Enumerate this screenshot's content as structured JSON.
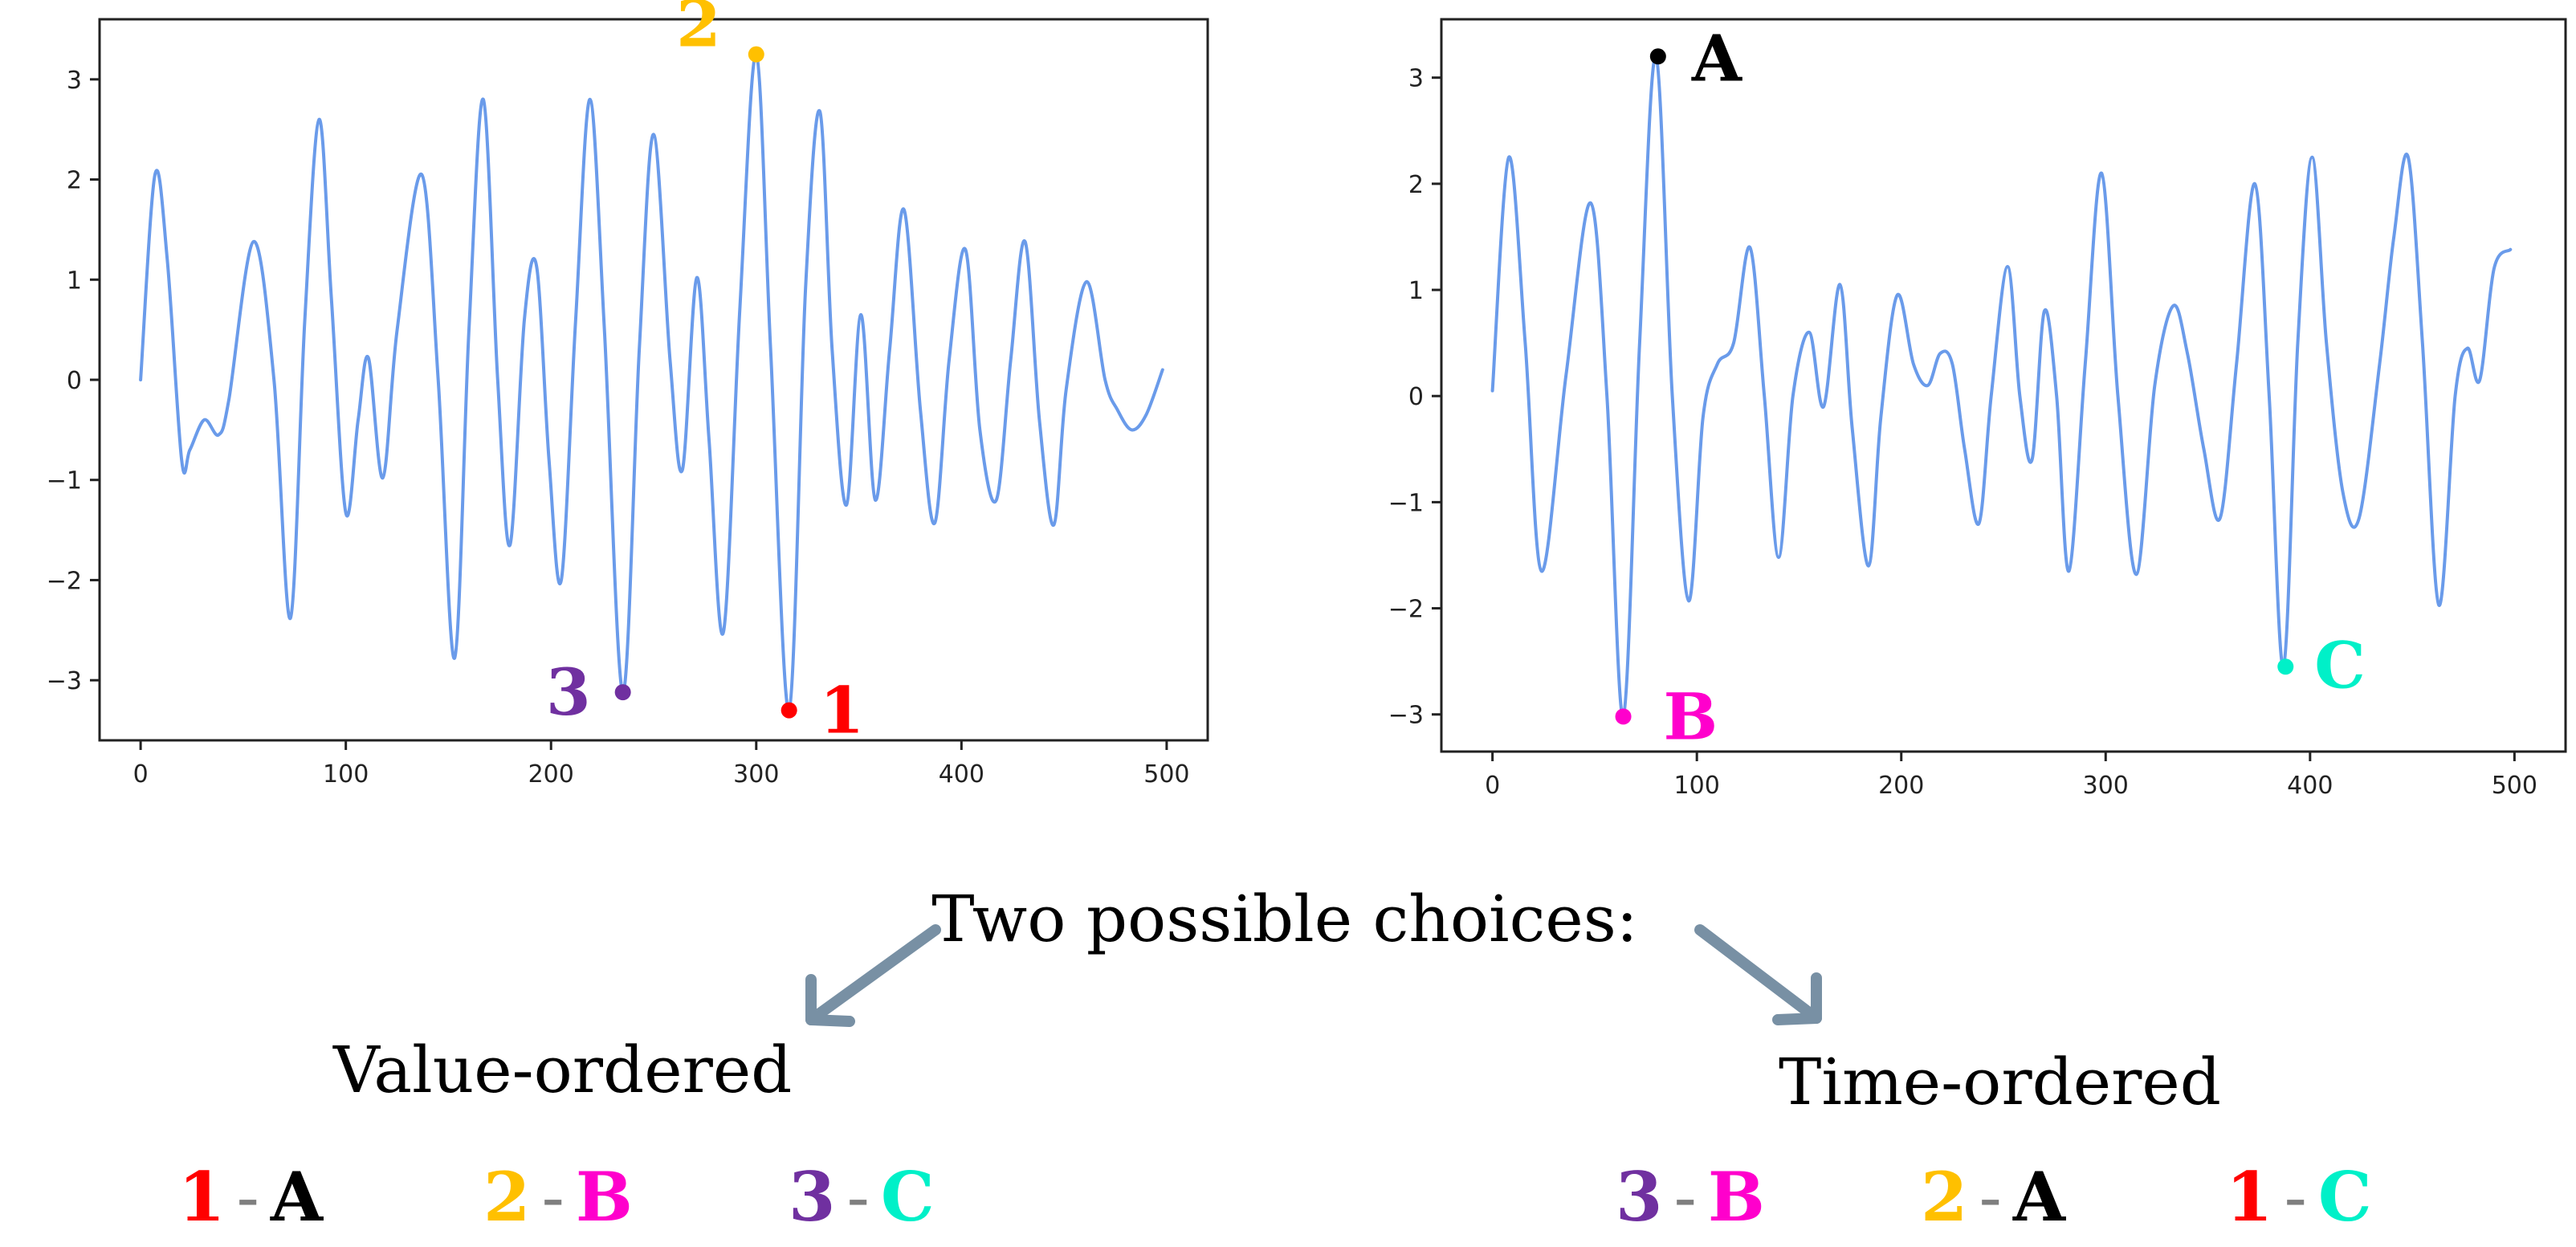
{
  "chart_data": [
    {
      "type": "line",
      "title": "",
      "xlabel": "",
      "ylabel": "",
      "xlim": [
        -20,
        520
      ],
      "ylim": [
        -3.6,
        3.6
      ],
      "xticks": [
        0,
        100,
        200,
        300,
        400,
        500
      ],
      "yticks": [
        -3,
        -2,
        -1,
        0,
        1,
        2,
        3
      ],
      "line_color": "#6a9bea",
      "series": [
        {
          "name": "signal-1",
          "x": [
            0,
            7,
            13,
            20,
            24,
            31,
            38,
            43,
            55,
            65,
            73,
            80,
            87,
            93,
            100,
            106,
            111,
            118,
            125,
            137,
            145,
            153,
            160,
            167,
            174,
            180,
            187,
            193,
            199,
            205,
            212,
            219,
            226,
            235,
            243,
            250,
            258,
            264,
            271,
            277,
            284,
            292,
            300,
            307,
            316,
            324,
            331,
            337,
            344,
            351,
            358,
            365,
            372,
            380,
            387,
            394,
            402,
            409,
            417,
            424,
            431,
            438,
            445,
            451,
            461,
            470,
            476,
            483,
            490,
            498
          ],
          "y": [
            0,
            2.05,
            1.2,
            -0.8,
            -0.7,
            -0.4,
            -0.55,
            -0.2,
            1.38,
            0,
            -2.38,
            0.6,
            2.6,
            0.8,
            -1.33,
            -0.4,
            0.22,
            -0.98,
            0.5,
            2.05,
            0,
            -2.78,
            0.5,
            2.8,
            0,
            -1.65,
            0.6,
            1.13,
            -0.8,
            -2.0,
            0.6,
            2.8,
            0.5,
            -3.12,
            0.3,
            2.45,
            0.2,
            -0.9,
            1.02,
            -0.6,
            -2.52,
            0.7,
            3.25,
            0.3,
            -3.3,
            0.9,
            2.68,
            0.3,
            -1.25,
            0.65,
            -1.2,
            0.3,
            1.7,
            -0.3,
            -1.43,
            0.2,
            1.3,
            -0.5,
            -1.2,
            0.2,
            1.38,
            -0.4,
            -1.45,
            -0.1,
            0.98,
            0,
            -0.3,
            -0.5,
            -0.35,
            0.1
          ]
        }
      ],
      "annotations": [
        {
          "label": "2",
          "x": 300,
          "y": 3.25,
          "color": "#ffc000"
        },
        {
          "label": "3",
          "x": 235,
          "y": -3.12,
          "color": "#7030a0"
        },
        {
          "label": "1",
          "x": 316,
          "y": -3.3,
          "color": "#ff0000"
        }
      ]
    },
    {
      "type": "line",
      "title": "",
      "xlabel": "",
      "ylabel": "",
      "xlim": [
        -25,
        525
      ],
      "ylim": [
        -3.35,
        3.55
      ],
      "xticks": [
        0,
        100,
        200,
        300,
        400,
        500
      ],
      "yticks": [
        -3,
        -2,
        -1,
        0,
        1,
        2,
        3
      ],
      "line_color": "#6a9bea",
      "series": [
        {
          "name": "signal-2",
          "x": [
            0,
            8,
            16,
            24,
            36,
            48,
            56,
            64,
            72,
            80,
            88,
            96,
            103,
            110,
            118,
            126,
            133,
            140,
            147,
            155,
            162,
            170,
            176,
            184,
            190,
            198,
            206,
            213,
            219,
            225,
            231,
            238,
            244,
            252,
            258,
            264,
            270,
            276,
            282,
            290,
            298,
            306,
            315,
            324,
            333,
            340,
            348,
            356,
            364,
            373,
            380,
            387,
            394,
            401,
            408,
            416,
            424,
            434,
            441,
            448,
            455,
            463,
            471,
            477,
            483,
            490,
            498
          ],
          "y": [
            0.05,
            2.25,
            0.5,
            -1.65,
            0.2,
            1.82,
            0,
            -3.02,
            0.5,
            3.2,
            0,
            -1.93,
            -0.2,
            0.3,
            0.5,
            1.4,
            0,
            -1.52,
            0,
            0.6,
            -0.1,
            1.05,
            -0.3,
            -1.6,
            -0.2,
            0.95,
            0.3,
            0.1,
            0.4,
            0.3,
            -0.5,
            -1.2,
            0,
            1.22,
            0,
            -0.6,
            0.8,
            0,
            -1.65,
            0.3,
            2.1,
            0,
            -1.68,
            0.1,
            0.85,
            0.4,
            -0.5,
            -1.15,
            0.3,
            2.0,
            0,
            -2.55,
            0.5,
            2.25,
            0.5,
            -0.9,
            -1.15,
            0.3,
            1.5,
            2.25,
            0.5,
            -1.97,
            0,
            0.45,
            0.15,
            1.2,
            1.38
          ]
        }
      ],
      "annotations": [
        {
          "label": "A",
          "x": 81,
          "y": 3.2,
          "color": "#000000"
        },
        {
          "label": "B",
          "x": 64,
          "y": -3.02,
          "color": "#ff00cc"
        },
        {
          "label": "C",
          "x": 388,
          "y": -2.55,
          "color": "#00f0c8"
        }
      ]
    }
  ],
  "caption": {
    "question": "Two possible choices:",
    "left_heading": "Value-ordered",
    "right_heading": "Time-ordered",
    "separator": "-",
    "left_pairs": [
      {
        "num": "1",
        "num_color": "#ff0000",
        "letter": "A",
        "letter_color": "#000000"
      },
      {
        "num": "2",
        "num_color": "#ffc000",
        "letter": "B",
        "letter_color": "#ff00cc"
      },
      {
        "num": "3",
        "num_color": "#7030a0",
        "letter": "C",
        "letter_color": "#00f0c8"
      }
    ],
    "right_pairs": [
      {
        "num": "3",
        "num_color": "#7030a0",
        "letter": "B",
        "letter_color": "#ff00cc"
      },
      {
        "num": "2",
        "num_color": "#ffc000",
        "letter": "A",
        "letter_color": "#000000"
      },
      {
        "num": "1",
        "num_color": "#ff0000",
        "letter": "C",
        "letter_color": "#00f0c8"
      }
    ],
    "separator_color": "#7f7f7f",
    "arrow_color": "#7890a4"
  }
}
